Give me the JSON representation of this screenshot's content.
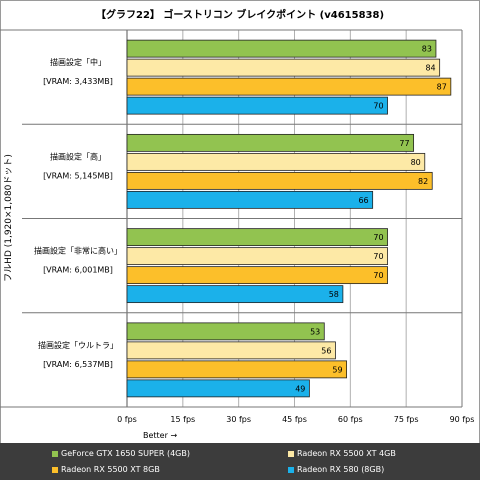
{
  "chart_data": {
    "type": "bar",
    "orientation": "horizontal",
    "title": "【グラフ22】 ゴーストリコン ブレイクポイント (v4615838)",
    "ylabel": "フルHD (1,920×1,080ドット)",
    "xlabel": "Better →",
    "xlim": [
      0,
      90
    ],
    "x_ticks": [
      "0 fps",
      "15 fps",
      "30 fps",
      "45 fps",
      "60 fps",
      "75 fps",
      "90 fps"
    ],
    "grid": true,
    "legend_position": "bottom",
    "groups": [
      {
        "label_line1": "描画設定「中」",
        "label_line2": "[VRAM: 3,433MB]",
        "values": [
          83,
          84,
          87,
          70
        ]
      },
      {
        "label_line1": "描画設定「高」",
        "label_line2": "[VRAM: 5,145MB]",
        "values": [
          77,
          80,
          82,
          66
        ]
      },
      {
        "label_line1": "描画設定「非常に高い」",
        "label_line2": "[VRAM: 6,001MB]",
        "values": [
          70,
          70,
          70,
          58
        ]
      },
      {
        "label_line1": "描画設定「ウルトラ」",
        "label_line2": "[VRAM: 6,537MB]",
        "values": [
          53,
          56,
          59,
          49
        ]
      }
    ],
    "series": [
      {
        "name": "GeForce GTX 1650 SUPER (4GB)",
        "color": "#92c350"
      },
      {
        "name": "Radeon RX 5500 XT 4GB",
        "color": "#fde9a6"
      },
      {
        "name": "Radeon RX 5500 XT 8GB",
        "color": "#fcbf2a"
      },
      {
        "name": "Radeon RX 580 (8GB)",
        "color": "#1bb1ea"
      }
    ]
  }
}
